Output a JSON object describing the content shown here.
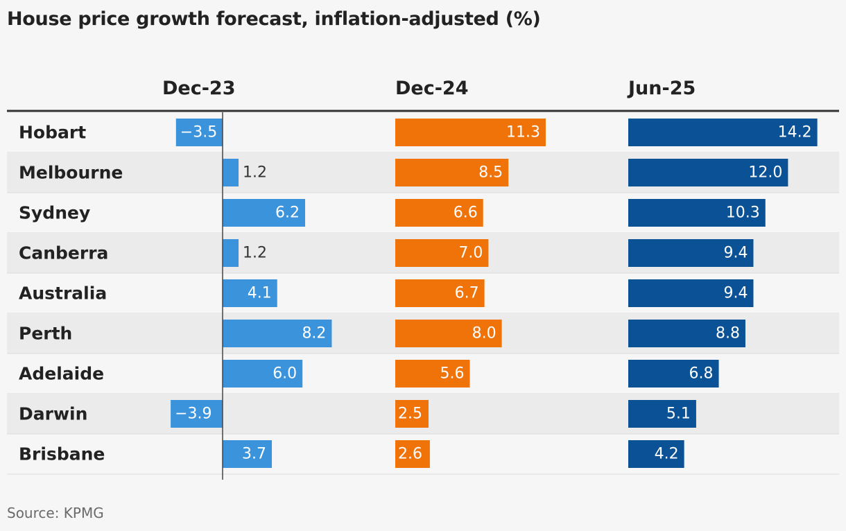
{
  "title": "House price growth forecast, inflation-adjusted (%)",
  "source": "Source: KPMG",
  "chart_data": {
    "type": "bar",
    "orientation": "horizontal",
    "title": "House price growth forecast, inflation-adjusted (%)",
    "categories": [
      "Hobart",
      "Melbourne",
      "Sydney",
      "Canberra",
      "Australia",
      "Perth",
      "Adelaide",
      "Darwin",
      "Brisbane"
    ],
    "series": [
      {
        "name": "Dec-23",
        "color": "#3b93dc",
        "values": [
          -3.5,
          1.2,
          6.2,
          1.2,
          4.1,
          8.2,
          6.0,
          -3.9,
          3.7
        ],
        "labels": [
          "−3.5",
          "1.2",
          "6.2",
          "1.2",
          "4.1",
          "8.2",
          "6.0",
          "−3.9",
          "3.7"
        ]
      },
      {
        "name": "Dec-24",
        "color": "#f07309",
        "values": [
          11.3,
          8.5,
          6.6,
          7.0,
          6.7,
          8.0,
          5.6,
          2.5,
          2.6
        ],
        "labels": [
          "11.3",
          "8.5",
          "6.6",
          "7.0",
          "6.7",
          "8.0",
          "5.6",
          "2.5",
          "2.6"
        ]
      },
      {
        "name": "Jun-25",
        "color": "#0a5295",
        "values": [
          14.2,
          12.0,
          10.3,
          9.4,
          9.4,
          8.8,
          6.8,
          5.1,
          4.2
        ],
        "labels": [
          "14.2",
          "12.0",
          "10.3",
          "9.4",
          "9.4",
          "8.8",
          "6.8",
          "5.1",
          "4.2"
        ]
      }
    ],
    "row_shading": "alternating",
    "colors": {
      "row_alt": "#ebebeb",
      "divider": "#dcdcdc",
      "header_rule": "#333333",
      "zero_line": "#444444"
    }
  }
}
